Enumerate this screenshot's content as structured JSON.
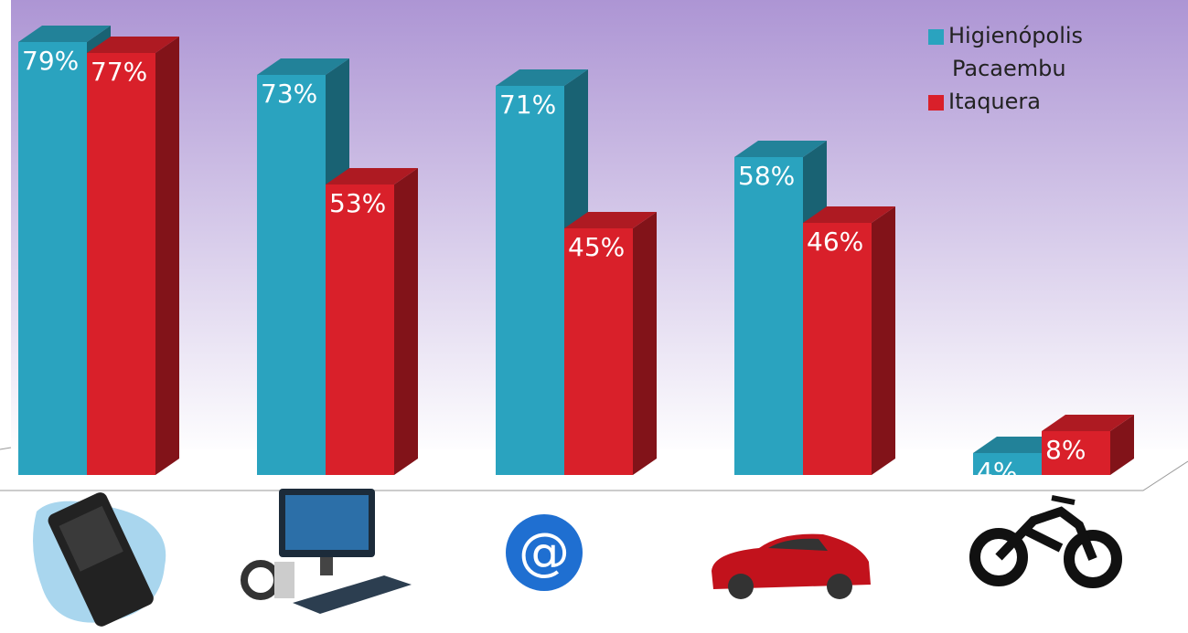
{
  "chart_data": {
    "type": "bar3d",
    "categories": [
      null,
      null,
      null,
      null,
      null
    ],
    "series": [
      {
        "name": "Higienópolis Pacaembu",
        "color": "#2aa3bf",
        "values": [
          79,
          73,
          71,
          58,
          4
        ],
        "value_labels": [
          "79%",
          "73%",
          "71%",
          "58%",
          "4%"
        ]
      },
      {
        "name": "Itaquera",
        "color": "#d9202a",
        "values": [
          77,
          53,
          45,
          46,
          8
        ],
        "value_labels": [
          "77%",
          "53%",
          "45%",
          "46%",
          "8%"
        ]
      }
    ],
    "legend": "top-right"
  }
}
